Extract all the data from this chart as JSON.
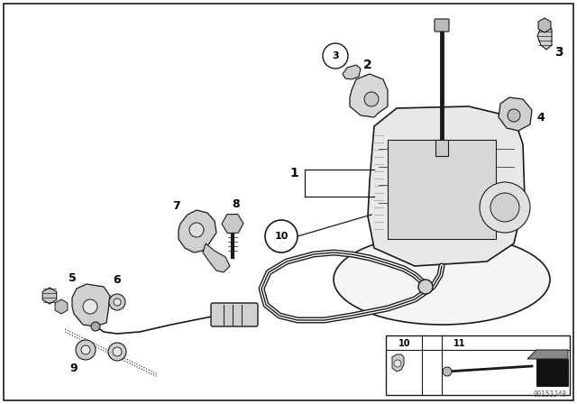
{
  "bg_color": "#ffffff",
  "lc": "#1a1a1a",
  "tc": "#000000",
  "watermark": "00153J48",
  "fig_w": 6.4,
  "fig_h": 4.48,
  "dpi": 100
}
